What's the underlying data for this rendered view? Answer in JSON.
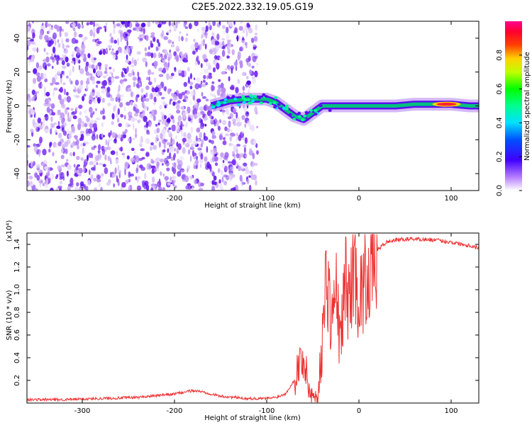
{
  "figure": {
    "title": "C2E5.2022.332.19.05.G19"
  },
  "colors": {
    "snr_line": "#ee3333",
    "spectrum_band": "#00c080",
    "scatter": "#7b2cf0",
    "scatter_light": "#c9a5f5"
  },
  "chart_data": [
    {
      "type": "heatmap",
      "title": "C2E5.2022.332.19.05.G19",
      "xlabel": "Height of straight line (km)",
      "ylabel": "Frequency (Hz)",
      "xlim": [
        -360,
        130
      ],
      "ylim": [
        -50,
        50
      ],
      "xticks": [
        -300,
        -200,
        -100,
        0,
        100
      ],
      "xtick_labels": [
        "-300",
        "-200",
        "-100",
        "0",
        "100"
      ],
      "yticks": [
        -40,
        -20,
        0,
        20,
        40
      ],
      "ytick_labels": [
        "-40",
        "-20",
        "0",
        "20",
        "40"
      ],
      "colorbar": {
        "label": "Normalized spectral amplitude",
        "range": [
          0,
          1
        ],
        "ticks": [
          0.0,
          0.2,
          0.4,
          0.6,
          0.8
        ],
        "tick_labels": [
          "0.0",
          "0.2",
          "0.4",
          "0.6",
          "0.8"
        ],
        "colormap": "gist_rainbow (white-violet-blue-cyan-green-yellow-red-magenta)"
      },
      "signal_track": {
        "x": [
          -160,
          -140,
          -120,
          -100,
          -90,
          -80,
          -70,
          -60,
          -50,
          -40,
          -30,
          -20,
          -10,
          0,
          20,
          40,
          60,
          80,
          100,
          120,
          130
        ],
        "y": [
          0,
          3,
          4,
          4,
          2,
          -2,
          -6,
          -8,
          -4,
          0,
          0,
          0,
          0,
          0,
          0,
          0,
          1,
          1,
          1,
          0,
          0
        ],
        "peak_amplitude_near_x": 95
      },
      "noise_region": {
        "x_from": -360,
        "x_to": -110,
        "y_from": -50,
        "y_to": 50
      }
    },
    {
      "type": "line",
      "xlabel": "Height of straight line (km)",
      "ylabel": "SNR (10 * v/v)",
      "y_scale_label": "(x10⁴)",
      "xlim": [
        -360,
        130
      ],
      "ylim": [
        0,
        1.5
      ],
      "xticks": [
        -300,
        -200,
        -100,
        0,
        100
      ],
      "xtick_labels": [
        "-300",
        "-200",
        "-100",
        "0",
        "100"
      ],
      "yticks": [
        0.2,
        0.4,
        0.6,
        0.8,
        1.0,
        1.2,
        1.4
      ],
      "ytick_labels": [
        "0.2",
        "0.4",
        "0.6",
        "0.8",
        "1.0",
        "1.2",
        "1.4"
      ],
      "series": [
        {
          "x": [
            -360,
            -320,
            -280,
            -240,
            -200,
            -180,
            -170,
            -150,
            -120,
            -100,
            -90,
            -80,
            -70,
            -65,
            -60,
            -55,
            -50,
            -45,
            -40,
            -35,
            -30,
            -25,
            -20,
            -15,
            -10,
            -5,
            0,
            5,
            10,
            20,
            30,
            40,
            60,
            80,
            100,
            120,
            130
          ],
          "y": [
            0.03,
            0.03,
            0.04,
            0.05,
            0.08,
            0.11,
            0.1,
            0.06,
            0.04,
            0.04,
            0.05,
            0.08,
            0.2,
            0.35,
            0.4,
            0.15,
            0.06,
            0.05,
            0.5,
            1.2,
            0.7,
            1.0,
            0.5,
            1.1,
            0.9,
            1.3,
            0.9,
            1.05,
            1.2,
            1.35,
            1.42,
            1.44,
            1.45,
            1.44,
            1.42,
            1.39,
            1.37
          ]
        }
      ]
    }
  ]
}
